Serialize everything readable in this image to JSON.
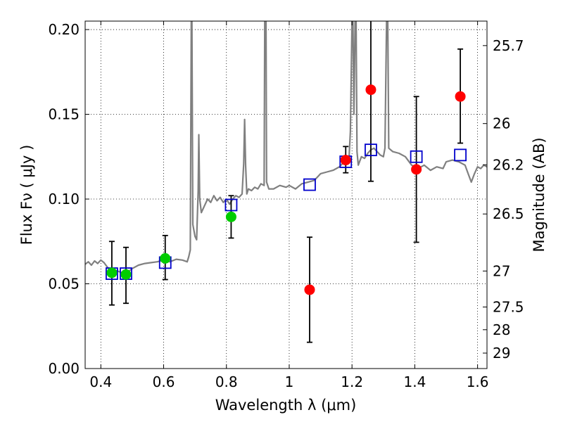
{
  "chart_data": {
    "type": "scatter",
    "xlabel": "Wavelength  λ (μm)",
    "ylabel": "Flux  Fν ( μJy )",
    "ylabel_right": "Magnitude (AB)",
    "xlim": [
      0.35,
      1.63
    ],
    "ylim": [
      0.0,
      0.205
    ],
    "grid": true,
    "x_ticks": [
      {
        "v": 0.4,
        "label": "0.4"
      },
      {
        "v": 0.6,
        "label": "0.6"
      },
      {
        "v": 0.8,
        "label": "0.8"
      },
      {
        "v": 1.0,
        "label": "1"
      },
      {
        "v": 1.2,
        "label": "1.2"
      },
      {
        "v": 1.4,
        "label": "1.4"
      },
      {
        "v": 1.6,
        "label": "1.6"
      }
    ],
    "y_ticks": [
      {
        "v": 0.0,
        "label": "0.00"
      },
      {
        "v": 0.05,
        "label": "0.05"
      },
      {
        "v": 0.1,
        "label": "0.10"
      },
      {
        "v": 0.15,
        "label": "0.15"
      },
      {
        "v": 0.2,
        "label": "0.20"
      }
    ],
    "right_ticks": [
      {
        "v": 25.7,
        "label": "25.7"
      },
      {
        "v": 26.0,
        "label": "26"
      },
      {
        "v": 26.2,
        "label": "26.2"
      },
      {
        "v": 26.5,
        "label": "26.5"
      },
      {
        "v": 27.0,
        "label": "27"
      },
      {
        "v": 27.5,
        "label": "27.5"
      },
      {
        "v": 28.0,
        "label": "28"
      },
      {
        "v": 29.0,
        "label": "29"
      }
    ],
    "series": [
      {
        "kind": "spectrum_line",
        "color": "#808080",
        "points": [
          [
            0.35,
            0.0615
          ],
          [
            0.36,
            0.063
          ],
          [
            0.37,
            0.061
          ],
          [
            0.38,
            0.0635
          ],
          [
            0.39,
            0.062
          ],
          [
            0.4,
            0.064
          ],
          [
            0.41,
            0.0625
          ],
          [
            0.42,
            0.06
          ],
          [
            0.425,
            0.059
          ],
          [
            0.43,
            0.058
          ],
          [
            0.44,
            0.0575
          ],
          [
            0.45,
            0.0578
          ],
          [
            0.46,
            0.057
          ],
          [
            0.47,
            0.0565
          ],
          [
            0.48,
            0.056
          ],
          [
            0.49,
            0.0575
          ],
          [
            0.5,
            0.059
          ],
          [
            0.52,
            0.061
          ],
          [
            0.54,
            0.062
          ],
          [
            0.56,
            0.0625
          ],
          [
            0.58,
            0.063
          ],
          [
            0.6,
            0.064
          ],
          [
            0.62,
            0.063
          ],
          [
            0.64,
            0.0645
          ],
          [
            0.66,
            0.064
          ],
          [
            0.675,
            0.063
          ],
          [
            0.68,
            0.066
          ],
          [
            0.685,
            0.07
          ],
          [
            0.688,
            0.205
          ],
          [
            0.69,
            0.205
          ],
          [
            0.693,
            0.085
          ],
          [
            0.7,
            0.078
          ],
          [
            0.705,
            0.076
          ],
          [
            0.71,
            0.105
          ],
          [
            0.712,
            0.138
          ],
          [
            0.715,
            0.1
          ],
          [
            0.72,
            0.092
          ],
          [
            0.73,
            0.096
          ],
          [
            0.74,
            0.1
          ],
          [
            0.75,
            0.098
          ],
          [
            0.76,
            0.102
          ],
          [
            0.77,
            0.099
          ],
          [
            0.78,
            0.101
          ],
          [
            0.79,
            0.098
          ],
          [
            0.8,
            0.1
          ],
          [
            0.81,
            0.097
          ],
          [
            0.82,
            0.1
          ],
          [
            0.83,
            0.102
          ],
          [
            0.84,
            0.101
          ],
          [
            0.85,
            0.103
          ],
          [
            0.855,
            0.121
          ],
          [
            0.858,
            0.147
          ],
          [
            0.861,
            0.12
          ],
          [
            0.865,
            0.103
          ],
          [
            0.87,
            0.106
          ],
          [
            0.88,
            0.105
          ],
          [
            0.89,
            0.107
          ],
          [
            0.9,
            0.106
          ],
          [
            0.91,
            0.109
          ],
          [
            0.92,
            0.108
          ],
          [
            0.922,
            0.205
          ],
          [
            0.926,
            0.205
          ],
          [
            0.928,
            0.11
          ],
          [
            0.935,
            0.106
          ],
          [
            0.95,
            0.106
          ],
          [
            0.97,
            0.108
          ],
          [
            0.99,
            0.107
          ],
          [
            1.0,
            0.108
          ],
          [
            1.02,
            0.106
          ],
          [
            1.04,
            0.109
          ],
          [
            1.06,
            0.11
          ],
          [
            1.08,
            0.111
          ],
          [
            1.1,
            0.115
          ],
          [
            1.12,
            0.116
          ],
          [
            1.14,
            0.117
          ],
          [
            1.16,
            0.119
          ],
          [
            1.17,
            0.121
          ],
          [
            1.18,
            0.123
          ],
          [
            1.19,
            0.122
          ],
          [
            1.195,
            0.14
          ],
          [
            1.2,
            0.205
          ],
          [
            1.203,
            0.205
          ],
          [
            1.206,
            0.15
          ],
          [
            1.21,
            0.205
          ],
          [
            1.213,
            0.205
          ],
          [
            1.216,
            0.128
          ],
          [
            1.22,
            0.12
          ],
          [
            1.23,
            0.125
          ],
          [
            1.24,
            0.124
          ],
          [
            1.25,
            0.127
          ],
          [
            1.26,
            0.129
          ],
          [
            1.27,
            0.13
          ],
          [
            1.28,
            0.128
          ],
          [
            1.29,
            0.126
          ],
          [
            1.3,
            0.125
          ],
          [
            1.305,
            0.13
          ],
          [
            1.31,
            0.205
          ],
          [
            1.314,
            0.205
          ],
          [
            1.317,
            0.13
          ],
          [
            1.33,
            0.128
          ],
          [
            1.35,
            0.127
          ],
          [
            1.37,
            0.125
          ],
          [
            1.39,
            0.12
          ],
          [
            1.41,
            0.118
          ],
          [
            1.43,
            0.12
          ],
          [
            1.45,
            0.117
          ],
          [
            1.47,
            0.119
          ],
          [
            1.49,
            0.118
          ],
          [
            1.5,
            0.122
          ],
          [
            1.52,
            0.123
          ],
          [
            1.54,
            0.122
          ],
          [
            1.56,
            0.12
          ],
          [
            1.57,
            0.115
          ],
          [
            1.58,
            0.11
          ],
          [
            1.59,
            0.115
          ],
          [
            1.6,
            0.119
          ],
          [
            1.61,
            0.118
          ],
          [
            1.62,
            0.12
          ],
          [
            1.63,
            0.119
          ]
        ]
      },
      {
        "kind": "model_squares",
        "color": "#0000cc",
        "points": [
          [
            0.435,
            0.056
          ],
          [
            0.48,
            0.056
          ],
          [
            0.605,
            0.0625
          ],
          [
            0.815,
            0.0965
          ],
          [
            1.065,
            0.1085
          ],
          [
            1.18,
            0.122
          ],
          [
            1.26,
            0.129
          ],
          [
            1.405,
            0.125
          ],
          [
            1.545,
            0.126
          ]
        ]
      },
      {
        "kind": "green_points",
        "color": "#00cc00",
        "points": [
          {
            "x": 0.435,
            "y": 0.0565,
            "lo": 0.0375,
            "hi": 0.075
          },
          {
            "x": 0.48,
            "y": 0.0555,
            "lo": 0.0385,
            "hi": 0.0715
          },
          {
            "x": 0.605,
            "y": 0.065,
            "lo": 0.0525,
            "hi": 0.0785
          },
          {
            "x": 0.815,
            "y": 0.0895,
            "lo": 0.077,
            "hi": 0.102
          }
        ]
      },
      {
        "kind": "red_points",
        "color": "#ff0000",
        "points": [
          {
            "x": 1.065,
            "y": 0.0465,
            "lo": 0.0155,
            "hi": 0.0775
          },
          {
            "x": 1.18,
            "y": 0.123,
            "lo": 0.1155,
            "hi": 0.131
          },
          {
            "x": 1.26,
            "y": 0.1645,
            "lo": 0.1105,
            "hi": 0.21
          },
          {
            "x": 1.405,
            "y": 0.1175,
            "lo": 0.0745,
            "hi": 0.1605
          },
          {
            "x": 1.545,
            "y": 0.1605,
            "lo": 0.133,
            "hi": 0.1885
          }
        ]
      }
    ]
  }
}
